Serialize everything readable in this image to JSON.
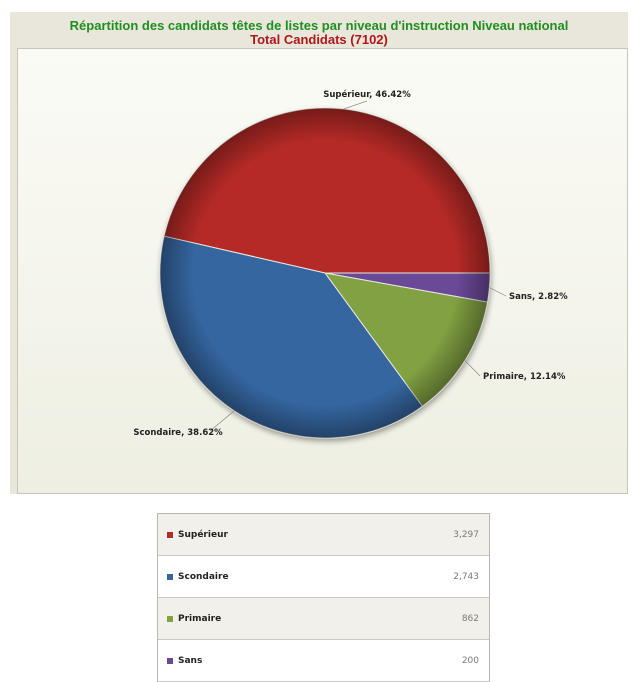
{
  "chart_data": {
    "type": "pie",
    "title": "Répartition des candidats têtes de listes par niveau d'instruction Niveau national",
    "subtitle": "Total Candidats (7102)",
    "slices": [
      {
        "name": "Supérieur",
        "percent": 46.42,
        "value": 3297,
        "value_label": "3,297",
        "color": "#b52b27",
        "label": "Supérieur, 46.42%"
      },
      {
        "name": "Sans",
        "percent": 2.82,
        "value": 200,
        "value_label": "200",
        "color": "#6a4a97",
        "label": "Sans, 2.82%"
      },
      {
        "name": "Primaire",
        "percent": 12.14,
        "value": 862,
        "value_label": "862",
        "color": "#82a142",
        "label": "Primaire, 12.14%"
      },
      {
        "name": "Scondaire",
        "percent": 38.62,
        "value": 2743,
        "value_label": "2,743",
        "color": "#3666a0",
        "label": "Scondaire, 38.62%"
      }
    ],
    "legend": {
      "placement": "bottom",
      "rows": [
        {
          "name": "Supérieur",
          "value": "3,297",
          "color": "#b52b27"
        },
        {
          "name": "Scondaire",
          "value": "2,743",
          "color": "#3666a0"
        },
        {
          "name": "Primaire",
          "value": "862",
          "color": "#82a142"
        },
        {
          "name": "Sans",
          "value": "200",
          "color": "#6a4a97"
        }
      ]
    }
  }
}
